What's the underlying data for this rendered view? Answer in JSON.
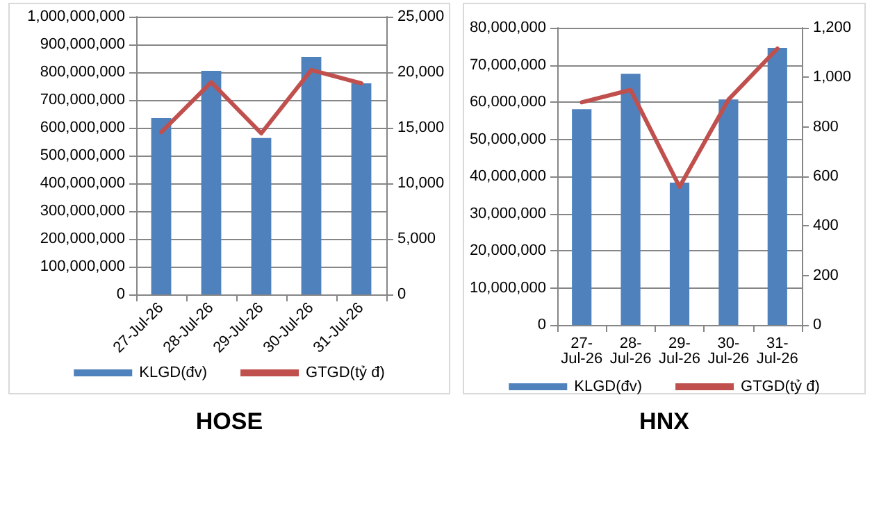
{
  "chart_data": [
    {
      "type": "bar",
      "title": "HOSE",
      "categories": [
        "27-Jul-26",
        "28-Jul-26",
        "29-Jul-26",
        "30-Jul-26",
        "31-Jul-26"
      ],
      "series": [
        {
          "name": "KLGD(đv)",
          "color": "#4f81bd",
          "values": [
            635000000,
            805000000,
            563000000,
            855000000,
            760000000
          ]
        },
        {
          "name": "GTGD(tỷ đ)",
          "type": "line",
          "axis": "y2",
          "color": "#c0504d",
          "values": [
            14600,
            19100,
            14500,
            20200,
            19000
          ]
        }
      ],
      "ylim": [
        0,
        1000000000
      ],
      "yticks": [
        {
          "value": 0,
          "label": "0"
        },
        {
          "value": 100000000,
          "label": "100,000,000"
        },
        {
          "value": 200000000,
          "label": "200,000,000"
        },
        {
          "value": 300000000,
          "label": "300,000,000"
        },
        {
          "value": 400000000,
          "label": "400,000,000"
        },
        {
          "value": 500000000,
          "label": "500,000,000"
        },
        {
          "value": 600000000,
          "label": "600,000,000"
        },
        {
          "value": 700000000,
          "label": "700,000,000"
        },
        {
          "value": 800000000,
          "label": "800,000,000"
        },
        {
          "value": 900000000,
          "label": "900,000,000"
        },
        {
          "value": 1000000000,
          "label": "1,000,000,000"
        }
      ],
      "y2lim": [
        0,
        25000
      ],
      "y2ticks": [
        {
          "value": 0,
          "label": "0"
        },
        {
          "value": 5000,
          "label": "5,000"
        },
        {
          "value": 10000,
          "label": "10,000"
        },
        {
          "value": 15000,
          "label": "15,000"
        },
        {
          "value": 20000,
          "label": "20,000"
        },
        {
          "value": 25000,
          "label": "25,000"
        }
      ],
      "grid": "y",
      "legend": "bottom",
      "marker": "none",
      "line_style": "solid"
    },
    {
      "type": "bar",
      "title": "HNX",
      "categories": [
        "27-Jul-26",
        "28-Jul-26",
        "29-Jul-26",
        "30-Jul-26",
        "31-Jul-26"
      ],
      "series": [
        {
          "name": "KLGD(đv)",
          "color": "#4f81bd",
          "values": [
            58100000,
            67600000,
            38300000,
            60700000,
            74600000
          ]
        },
        {
          "name": "GTGD(tỷ đ)",
          "type": "line",
          "axis": "y2",
          "color": "#c0504d",
          "values": [
            899,
            949,
            558,
            910,
            1116
          ]
        }
      ],
      "ylim": [
        0,
        80000000
      ],
      "yticks": [
        {
          "value": 0,
          "label": "0"
        },
        {
          "value": 10000000,
          "label": "10,000,000"
        },
        {
          "value": 20000000,
          "label": "20,000,000"
        },
        {
          "value": 30000000,
          "label": "30,000,000"
        },
        {
          "value": 40000000,
          "label": "40,000,000"
        },
        {
          "value": 50000000,
          "label": "50,000,000"
        },
        {
          "value": 60000000,
          "label": "60,000,000"
        },
        {
          "value": 70000000,
          "label": "70,000,000"
        },
        {
          "value": 80000000,
          "label": "80,000,000"
        }
      ],
      "y2lim": [
        0,
        1200
      ],
      "y2ticks": [
        {
          "value": 0,
          "label": "0"
        },
        {
          "value": 200,
          "label": "200"
        },
        {
          "value": 400,
          "label": "400"
        },
        {
          "value": 600,
          "label": "600"
        },
        {
          "value": 800,
          "label": "800"
        },
        {
          "value": 1000,
          "label": "1,000"
        },
        {
          "value": 1200,
          "label": "1,200"
        }
      ],
      "grid": "y",
      "legend": "bottom",
      "marker": "none",
      "line_style": "solid"
    }
  ]
}
